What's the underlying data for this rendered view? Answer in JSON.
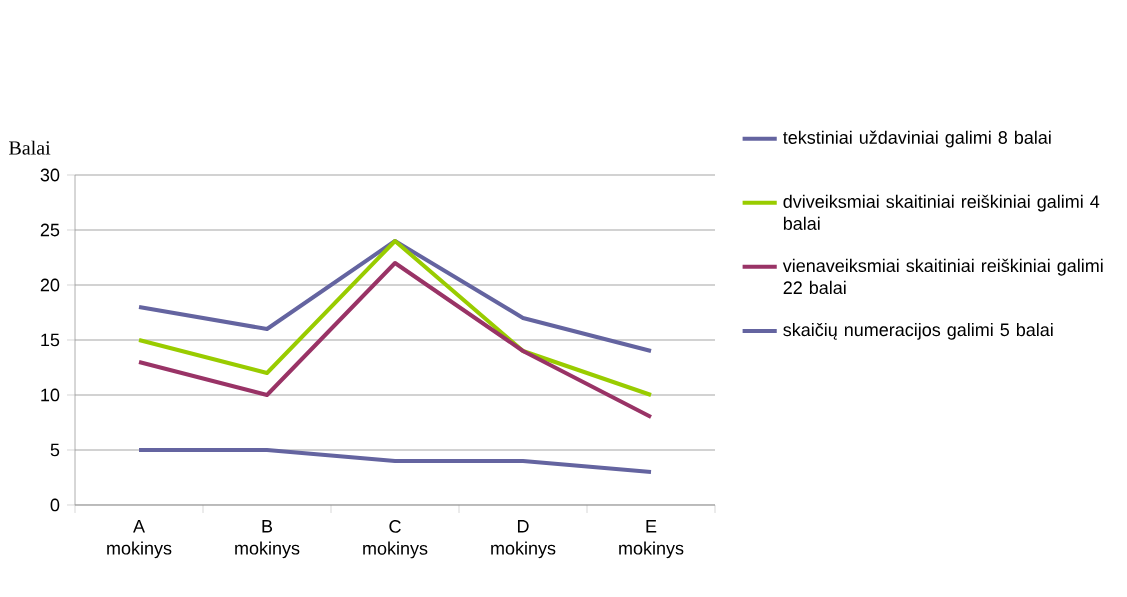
{
  "chart_data": {
    "type": "line",
    "ylabel": "Balai",
    "categories": [
      "A mokinys",
      "B mokinys",
      "C mokinys",
      "D mokinys",
      "E mokinys"
    ],
    "series": [
      {
        "name": "tekstiniai uždaviniai galimi 8 balai",
        "color": "#6464a0",
        "values": [
          18,
          16,
          24,
          17,
          14
        ]
      },
      {
        "name": "dviveiksmiai skaitiniai reiškiniai galimi 4 balai",
        "color": "#99cc00",
        "values": [
          15,
          12,
          24,
          14,
          10
        ]
      },
      {
        "name": "vienaveiksmiai skaitiniai reiškiniai galimi 22 balai",
        "color": "#993366",
        "values": [
          13,
          10,
          22,
          14,
          8
        ]
      },
      {
        "name": "skaičių numeracijos galimi 5 balai",
        "color": "#6464a0",
        "values": [
          5,
          5,
          4,
          4,
          3
        ]
      }
    ],
    "ylim": [
      0,
      30
    ],
    "yticks": [
      0,
      5,
      10,
      15,
      20,
      25,
      30
    ],
    "grid": "y",
    "legend": "right",
    "marker": "none"
  }
}
